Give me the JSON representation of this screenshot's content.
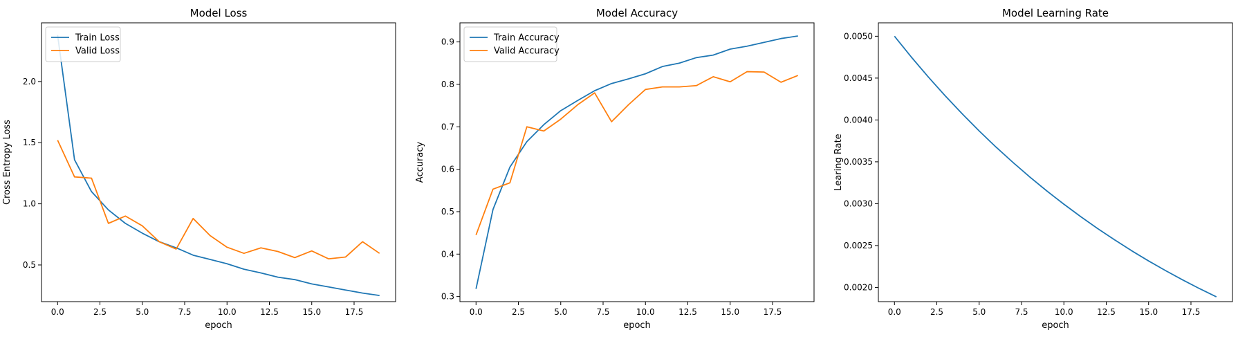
{
  "chart_data": [
    {
      "type": "line",
      "title": "Model Loss",
      "xlabel": "epoch",
      "ylabel": "Cross Entropy Loss",
      "xlim": [
        -0.95,
        19.95
      ],
      "ylim": [
        0.2,
        2.48
      ],
      "xticks": [
        0.0,
        2.5,
        5.0,
        7.5,
        10.0,
        12.5,
        15.0,
        17.5
      ],
      "xtick_labels": [
        "0.0",
        "2.5",
        "5.0",
        "7.5",
        "10.0",
        "12.5",
        "15.0",
        "17.5"
      ],
      "yticks": [
        0.5,
        1.0,
        1.5,
        2.0
      ],
      "ytick_labels": [
        "0.5",
        "1.0",
        "1.5",
        "2.0"
      ],
      "legend": "upper-left",
      "grid": false,
      "x": [
        0,
        1,
        2,
        3,
        4,
        5,
        6,
        7,
        8,
        9,
        10,
        11,
        12,
        13,
        14,
        15,
        16,
        17,
        18,
        19
      ],
      "series": [
        {
          "name": "Train Loss",
          "color": "#1f77b4",
          "values": [
            2.38,
            1.36,
            1.1,
            0.95,
            0.84,
            0.76,
            0.69,
            0.64,
            0.58,
            0.545,
            0.51,
            0.465,
            0.435,
            0.4,
            0.38,
            0.345,
            0.32,
            0.295,
            0.27,
            0.25
          ]
        },
        {
          "name": "Valid Loss",
          "color": "#ff7f0e",
          "values": [
            1.52,
            1.22,
            1.21,
            0.84,
            0.9,
            0.82,
            0.69,
            0.63,
            0.88,
            0.74,
            0.645,
            0.595,
            0.64,
            0.61,
            0.56,
            0.615,
            0.55,
            0.565,
            0.69,
            0.595
          ]
        }
      ]
    },
    {
      "type": "line",
      "title": "Model Accuracy",
      "xlabel": "epoch",
      "ylabel": "Accuracy",
      "xlim": [
        -0.95,
        19.95
      ],
      "ylim": [
        0.288,
        0.945
      ],
      "xticks": [
        0.0,
        2.5,
        5.0,
        7.5,
        10.0,
        12.5,
        15.0,
        17.5
      ],
      "xtick_labels": [
        "0.0",
        "2.5",
        "5.0",
        "7.5",
        "10.0",
        "12.5",
        "15.0",
        "17.5"
      ],
      "yticks": [
        0.3,
        0.4,
        0.5,
        0.6,
        0.7,
        0.8,
        0.9
      ],
      "ytick_labels": [
        "0.3",
        "0.4",
        "0.5",
        "0.6",
        "0.7",
        "0.8",
        "0.9"
      ],
      "legend": "upper-left",
      "grid": false,
      "x": [
        0,
        1,
        2,
        3,
        4,
        5,
        6,
        7,
        8,
        9,
        10,
        11,
        12,
        13,
        14,
        15,
        16,
        17,
        18,
        19
      ],
      "series": [
        {
          "name": "Train Accuracy",
          "color": "#1f77b4",
          "values": [
            0.318,
            0.505,
            0.605,
            0.665,
            0.705,
            0.738,
            0.762,
            0.785,
            0.802,
            0.813,
            0.825,
            0.842,
            0.85,
            0.863,
            0.869,
            0.883,
            0.89,
            0.899,
            0.908,
            0.914
          ]
        },
        {
          "name": "Valid Accuracy",
          "color": "#ff7f0e",
          "values": [
            0.445,
            0.553,
            0.568,
            0.7,
            0.69,
            0.718,
            0.752,
            0.78,
            0.712,
            0.752,
            0.788,
            0.794,
            0.794,
            0.797,
            0.818,
            0.806,
            0.83,
            0.829,
            0.805,
            0.821
          ]
        }
      ]
    },
    {
      "type": "line",
      "title": "Model Learning Rate",
      "xlabel": "epoch",
      "ylabel": "Learing Rate",
      "xlim": [
        -0.95,
        19.95
      ],
      "ylim": [
        0.00183,
        0.00516
      ],
      "xticks": [
        0.0,
        2.5,
        5.0,
        7.5,
        10.0,
        12.5,
        15.0,
        17.5
      ],
      "xtick_labels": [
        "0.0",
        "2.5",
        "5.0",
        "7.5",
        "10.0",
        "12.5",
        "15.0",
        "17.5"
      ],
      "yticks": [
        0.002,
        0.0025,
        0.003,
        0.0035,
        0.004,
        0.0045,
        0.005
      ],
      "ytick_labels": [
        "0.0020",
        "0.0025",
        "0.0030",
        "0.0035",
        "0.0040",
        "0.0045",
        "0.0050"
      ],
      "grid": false,
      "x": [
        0,
        1,
        2,
        3,
        4,
        5,
        6,
        7,
        8,
        9,
        10,
        11,
        12,
        13,
        14,
        15,
        16,
        17,
        18,
        19
      ],
      "series": [
        {
          "name": "",
          "color": "#1f77b4",
          "values": [
            0.005,
            0.00475,
            0.004513,
            0.004287,
            0.004073,
            0.003869,
            0.003675,
            0.003492,
            0.003317,
            0.003151,
            0.002994,
            0.002844,
            0.002702,
            0.002567,
            0.002438,
            0.002316,
            0.002201,
            0.002091,
            0.001986,
            0.001887
          ]
        }
      ]
    }
  ]
}
